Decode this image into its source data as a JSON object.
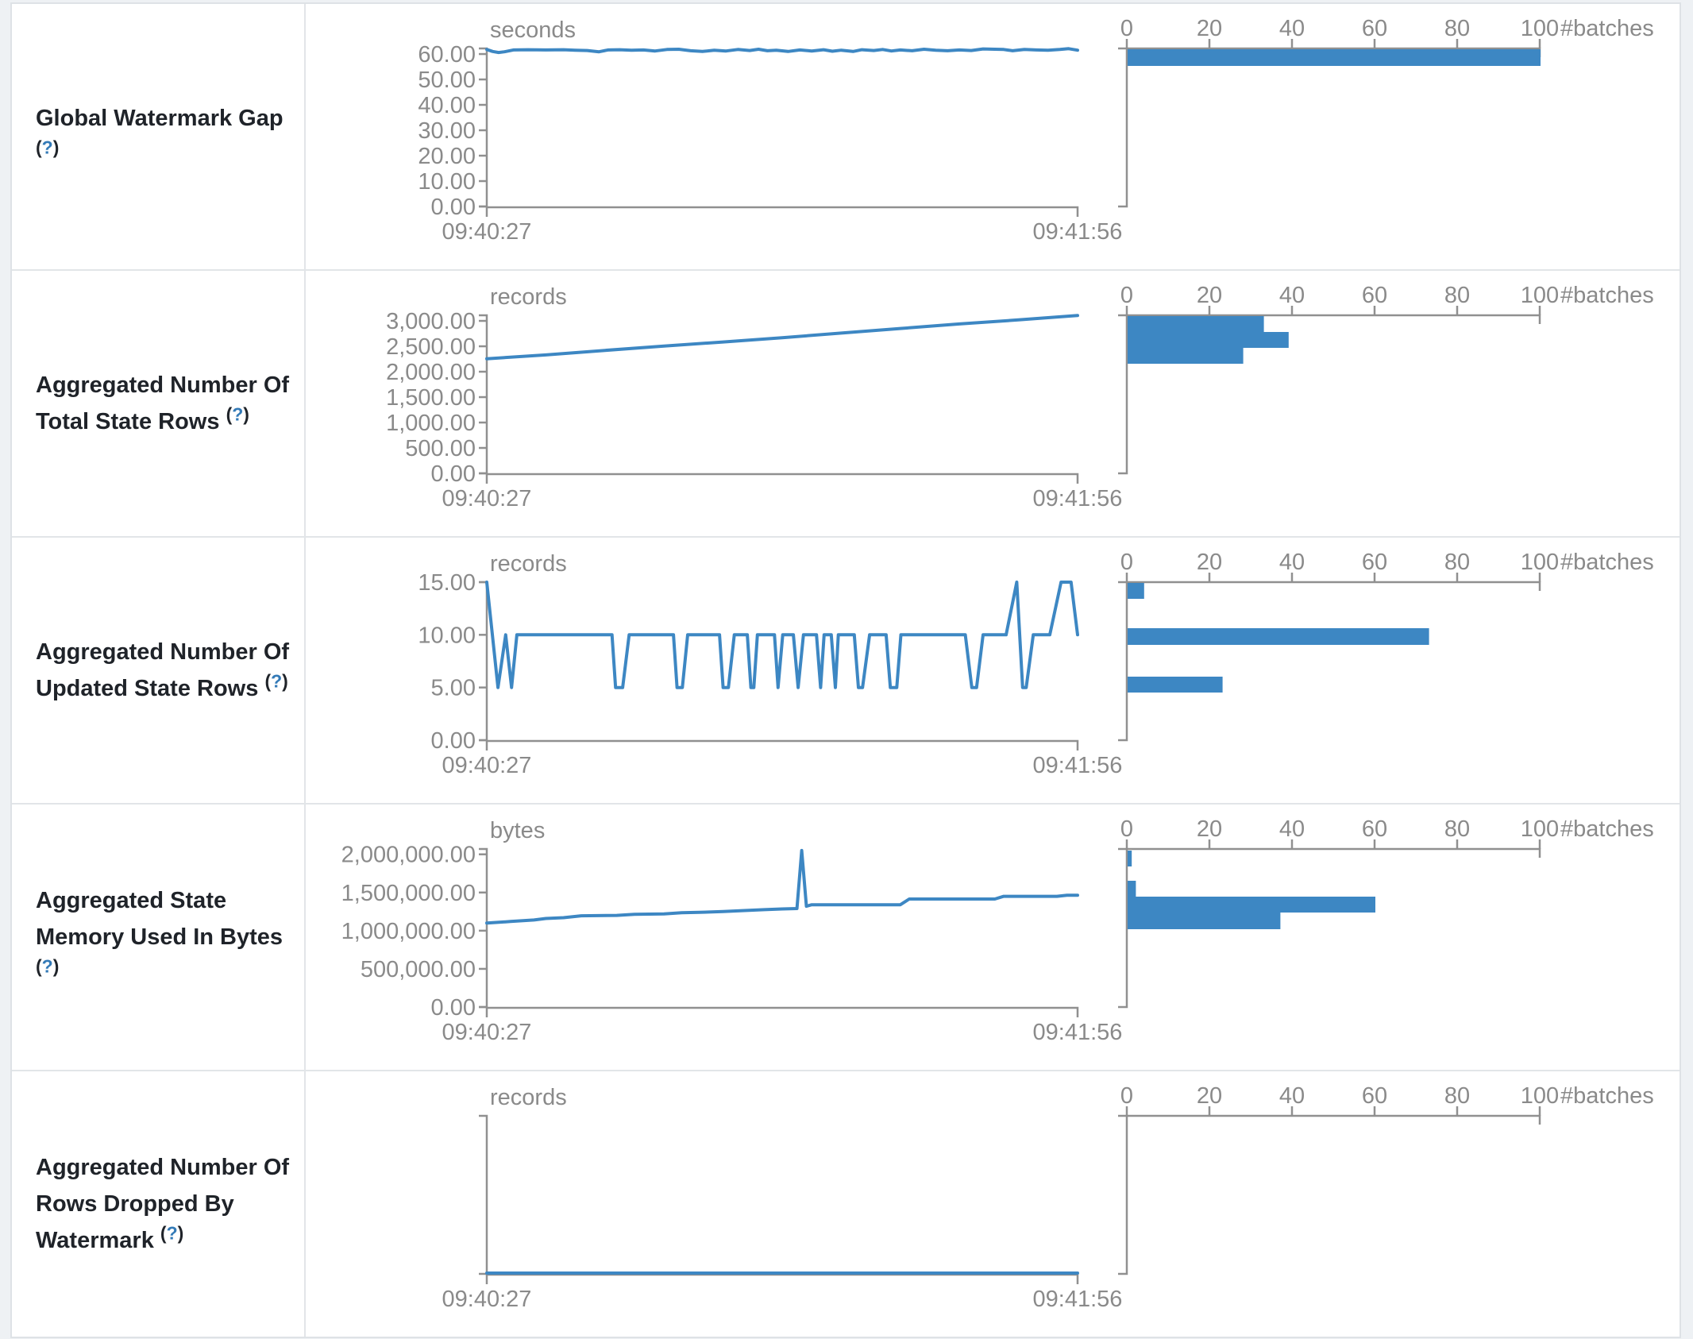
{
  "page": {
    "background": "#eef1f4",
    "table_border": "#dee2e6",
    "accent_blue": "#3d87c3",
    "axis_line_gray": "#909090",
    "axis_text_gray": "#8a8a8a",
    "label_color": "#1f2329",
    "help_color": "#337ab7"
  },
  "table": {
    "x_axis": {
      "start_label": "09:40:27",
      "end_label": "09:41:56"
    },
    "hist_axis": {
      "tick_values": [
        0,
        20,
        40,
        60,
        80,
        100
      ],
      "unit_label": "#batches"
    },
    "rows": [
      {
        "label": "Global Watermark Gap",
        "help": "?",
        "unit": "seconds",
        "chart_data": {
          "type": "line+histogram",
          "x_range": [
            "09:40:27",
            "09:41:56"
          ],
          "ylabel": "seconds",
          "ymax": 62.2,
          "yticks": [
            {
              "v": 60,
              "t": "60.00"
            },
            {
              "v": 50,
              "t": "50.00"
            },
            {
              "v": 40,
              "t": "40.00"
            },
            {
              "v": 30,
              "t": "30.00"
            },
            {
              "v": 20,
              "t": "20.00"
            },
            {
              "v": 10,
              "t": "10.00"
            },
            {
              "v": 0,
              "t": "0.00"
            }
          ],
          "points": [
            [
              0,
              61.8
            ],
            [
              0.01,
              61.0
            ],
            [
              0.02,
              60.6
            ],
            [
              0.03,
              60.9
            ],
            [
              0.045,
              61.6
            ],
            [
              0.07,
              61.7
            ],
            [
              0.1,
              61.6
            ],
            [
              0.13,
              61.7
            ],
            [
              0.15,
              61.5
            ],
            [
              0.17,
              61.4
            ],
            [
              0.19,
              60.9
            ],
            [
              0.205,
              61.6
            ],
            [
              0.225,
              61.7
            ],
            [
              0.245,
              61.5
            ],
            [
              0.265,
              61.6
            ],
            [
              0.285,
              61.2
            ],
            [
              0.305,
              61.8
            ],
            [
              0.325,
              61.9
            ],
            [
              0.345,
              61.3
            ],
            [
              0.365,
              61.0
            ],
            [
              0.385,
              61.5
            ],
            [
              0.405,
              61.2
            ],
            [
              0.425,
              61.8
            ],
            [
              0.445,
              61.4
            ],
            [
              0.46,
              61.9
            ],
            [
              0.475,
              61.3
            ],
            [
              0.49,
              61.5
            ],
            [
              0.51,
              61.0
            ],
            [
              0.53,
              61.6
            ],
            [
              0.55,
              61.2
            ],
            [
              0.57,
              61.7
            ],
            [
              0.585,
              61.1
            ],
            [
              0.6,
              61.5
            ],
            [
              0.62,
              61.0
            ],
            [
              0.635,
              61.7
            ],
            [
              0.655,
              61.4
            ],
            [
              0.67,
              61.8
            ],
            [
              0.685,
              61.2
            ],
            [
              0.7,
              61.6
            ],
            [
              0.72,
              61.3
            ],
            [
              0.74,
              61.9
            ],
            [
              0.76,
              61.5
            ],
            [
              0.78,
              61.3
            ],
            [
              0.8,
              61.6
            ],
            [
              0.82,
              61.4
            ],
            [
              0.84,
              62.0
            ],
            [
              0.86,
              61.9
            ],
            [
              0.875,
              61.8
            ],
            [
              0.89,
              61.3
            ],
            [
              0.91,
              61.8
            ],
            [
              0.93,
              61.6
            ],
            [
              0.95,
              61.5
            ],
            [
              0.97,
              61.8
            ],
            [
              0.985,
              62.1
            ],
            [
              1,
              61.5
            ]
          ],
          "histogram_bars": [
            {
              "y": 57,
              "h": 21,
              "count": 100
            }
          ]
        }
      },
      {
        "label": "Aggregated Number Of Total State Rows",
        "help": "?",
        "unit": "records",
        "chart_data": {
          "type": "line+histogram",
          "x_range": [
            "09:40:27",
            "09:41:56"
          ],
          "ylabel": "records",
          "ymax": 3110,
          "yticks": [
            {
              "v": 3000,
              "t": "3,000.00"
            },
            {
              "v": 2500,
              "t": "2,500.00"
            },
            {
              "v": 2000,
              "t": "2,000.00"
            },
            {
              "v": 1500,
              "t": "1,500.00"
            },
            {
              "v": 1000,
              "t": "1,000.00"
            },
            {
              "v": 500,
              "t": "500.00"
            },
            {
              "v": 0,
              "t": "0.00"
            }
          ],
          "points": [
            [
              0,
              2255
            ],
            [
              0.1,
              2330
            ],
            [
              0.2,
              2420
            ],
            [
              0.3,
              2505
            ],
            [
              0.4,
              2585
            ],
            [
              0.5,
              2670
            ],
            [
              0.6,
              2760
            ],
            [
              0.7,
              2850
            ],
            [
              0.8,
              2940
            ],
            [
              0.9,
              3020
            ],
            [
              1,
              3105
            ]
          ],
          "histogram_bars": [
            {
              "y": 57,
              "h": 20,
              "count": 33
            },
            {
              "y": 77,
              "h": 20,
              "count": 39
            },
            {
              "y": 97,
              "h": 20,
              "count": 28
            }
          ]
        }
      },
      {
        "label": "Aggregated Number Of Updated State Rows",
        "help": "?",
        "unit": "records",
        "chart_data": {
          "type": "line+histogram",
          "x_range": [
            "09:40:27",
            "09:41:56"
          ],
          "ylabel": "records",
          "ymax": 15,
          "yticks": [
            {
              "v": 15,
              "t": "15.00"
            },
            {
              "v": 10,
              "t": "10.00"
            },
            {
              "v": 5,
              "t": "5.00"
            },
            {
              "v": 0,
              "t": "0.00"
            }
          ],
          "points": [
            [
              0,
              15
            ],
            [
              0.019,
              5
            ],
            [
              0.032,
              10
            ],
            [
              0.042,
              5
            ],
            [
              0.051,
              10
            ],
            [
              0.212,
              10
            ],
            [
              0.218,
              5
            ],
            [
              0.23,
              5
            ],
            [
              0.241,
              10
            ],
            [
              0.316,
              10
            ],
            [
              0.322,
              5
            ],
            [
              0.331,
              5
            ],
            [
              0.34,
              10
            ],
            [
              0.394,
              10
            ],
            [
              0.4,
              5
            ],
            [
              0.409,
              5
            ],
            [
              0.419,
              10
            ],
            [
              0.441,
              10
            ],
            [
              0.447,
              5
            ],
            [
              0.452,
              5
            ],
            [
              0.458,
              10
            ],
            [
              0.487,
              10
            ],
            [
              0.493,
              5
            ],
            [
              0.501,
              10
            ],
            [
              0.519,
              10
            ],
            [
              0.527,
              5
            ],
            [
              0.536,
              10
            ],
            [
              0.558,
              10
            ],
            [
              0.565,
              5
            ],
            [
              0.571,
              10
            ],
            [
              0.583,
              10
            ],
            [
              0.59,
              5
            ],
            [
              0.595,
              10
            ],
            [
              0.622,
              10
            ],
            [
              0.629,
              5
            ],
            [
              0.636,
              5
            ],
            [
              0.648,
              10
            ],
            [
              0.676,
              10
            ],
            [
              0.683,
              5
            ],
            [
              0.694,
              5
            ],
            [
              0.701,
              10
            ],
            [
              0.81,
              10
            ],
            [
              0.821,
              5
            ],
            [
              0.829,
              5
            ],
            [
              0.84,
              10
            ],
            [
              0.879,
              10
            ],
            [
              0.897,
              15
            ],
            [
              0.907,
              5
            ],
            [
              0.913,
              5
            ],
            [
              0.925,
              10
            ],
            [
              0.953,
              10
            ],
            [
              0.972,
              15
            ],
            [
              0.989,
              15
            ],
            [
              1,
              10
            ]
          ],
          "histogram_bars": [
            {
              "y": 57,
              "h": 20,
              "count": 4
            },
            {
              "y": 114,
              "h": 21,
              "count": 73
            },
            {
              "y": 175,
              "h": 20,
              "count": 23
            }
          ]
        }
      },
      {
        "label": "Aggregated State Memory Used In Bytes",
        "help": "?",
        "unit": "bytes",
        "chart_data": {
          "type": "line+histogram",
          "x_range": [
            "09:40:27",
            "09:41:56"
          ],
          "ylabel": "bytes",
          "ymax": 2070000,
          "yticks": [
            {
              "v": 2000000,
              "t": "2,000,000.00"
            },
            {
              "v": 1500000,
              "t": "1,500,000.00"
            },
            {
              "v": 1000000,
              "t": "1,000,000.00"
            },
            {
              "v": 500000,
              "t": "500,000.00"
            },
            {
              "v": 0,
              "t": "0.00"
            }
          ],
          "points": [
            [
              0,
              1100000
            ],
            [
              0.04,
              1120000
            ],
            [
              0.08,
              1140000
            ],
            [
              0.1,
              1160000
            ],
            [
              0.13,
              1170000
            ],
            [
              0.16,
              1195000
            ],
            [
              0.22,
              1200000
            ],
            [
              0.25,
              1215000
            ],
            [
              0.3,
              1220000
            ],
            [
              0.33,
              1235000
            ],
            [
              0.36,
              1240000
            ],
            [
              0.4,
              1250000
            ],
            [
              0.44,
              1265000
            ],
            [
              0.47,
              1275000
            ],
            [
              0.5,
              1285000
            ],
            [
              0.525,
              1290000
            ],
            [
              0.533,
              2050000
            ],
            [
              0.541,
              1320000
            ],
            [
              0.55,
              1340000
            ],
            [
              0.7,
              1340000
            ],
            [
              0.715,
              1415000
            ],
            [
              0.86,
              1415000
            ],
            [
              0.875,
              1450000
            ],
            [
              0.965,
              1450000
            ],
            [
              0.982,
              1465000
            ],
            [
              1,
              1465000
            ]
          ],
          "histogram_bars": [
            {
              "y": 58,
              "h": 20,
              "count": 1
            },
            {
              "y": 96,
              "h": 20,
              "count": 2
            },
            {
              "y": 116,
              "h": 20,
              "count": 60
            },
            {
              "y": 136,
              "h": 21,
              "count": 37
            }
          ]
        }
      },
      {
        "label": "Aggregated Number Of Rows Dropped By Watermark",
        "help": "?",
        "unit": "records",
        "chart_data": {
          "type": "line+histogram",
          "x_range": [
            "09:40:27",
            "09:41:56"
          ],
          "ylabel": "records",
          "ymax": 1,
          "yticks": [],
          "points": [
            [
              0,
              0
            ],
            [
              1,
              0
            ]
          ],
          "histogram_bars": []
        }
      }
    ]
  }
}
